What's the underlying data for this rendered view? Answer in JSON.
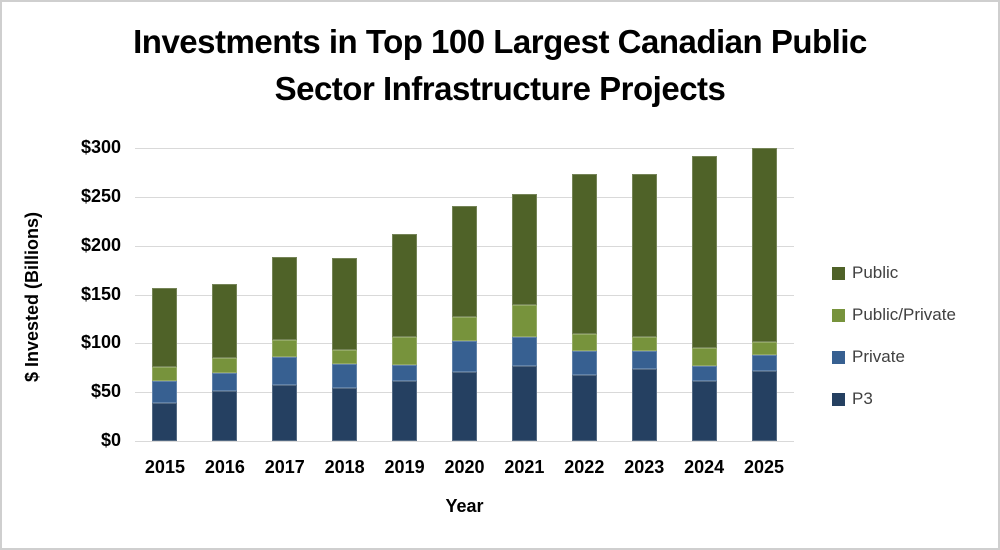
{
  "title": {
    "line1": "Investments in Top 100 Largest Canadian Public",
    "line2": "Sector Infrastructure Projects"
  },
  "chart_data": {
    "type": "bar",
    "stacked": true,
    "title": "Investments in Top 100 Largest Canadian Public Sector Infrastructure Projects",
    "xlabel": "Year",
    "ylabel": "$ Invested (Billions)",
    "categories": [
      "2015",
      "2016",
      "2017",
      "2018",
      "2019",
      "2020",
      "2021",
      "2022",
      "2023",
      "2024",
      "2025"
    ],
    "series": [
      {
        "name": "P3",
        "color": "#254061",
        "values": [
          39,
          51,
          57,
          54,
          61,
          71,
          77,
          68,
          74,
          61,
          72
        ]
      },
      {
        "name": "Private",
        "color": "#376091",
        "values": [
          22,
          19,
          29,
          25,
          17,
          31,
          29,
          24,
          18,
          16,
          16
        ]
      },
      {
        "name": "Public/Private",
        "color": "#77933C",
        "values": [
          15,
          15,
          17,
          14,
          29,
          25,
          33,
          18,
          15,
          18,
          13
        ]
      },
      {
        "name": "Public",
        "color": "#4F6228",
        "values": [
          81,
          76,
          85,
          94,
          105,
          114,
          114,
          163,
          166,
          197,
          199
        ]
      }
    ],
    "totals": [
      157,
      161,
      188,
      187,
      212,
      241,
      253,
      273,
      273,
      292,
      300
    ],
    "ylim": [
      0,
      300
    ],
    "y_ticks": [
      {
        "label": "$0",
        "value": 0
      },
      {
        "label": "$50",
        "value": 50
      },
      {
        "label": "$100",
        "value": 100
      },
      {
        "label": "$150",
        "value": 150
      },
      {
        "label": "$200",
        "value": 200
      },
      {
        "label": "$250",
        "value": 250
      },
      {
        "label": "$300",
        "value": 300
      }
    ],
    "grid": true,
    "legend": {
      "position": "right",
      "order": [
        "Public",
        "Public/Private",
        "Private",
        "P3"
      ]
    },
    "colors": {
      "gridline": "#D9D9D9",
      "legend_text": "#404040",
      "axis_text": "#000000"
    }
  }
}
